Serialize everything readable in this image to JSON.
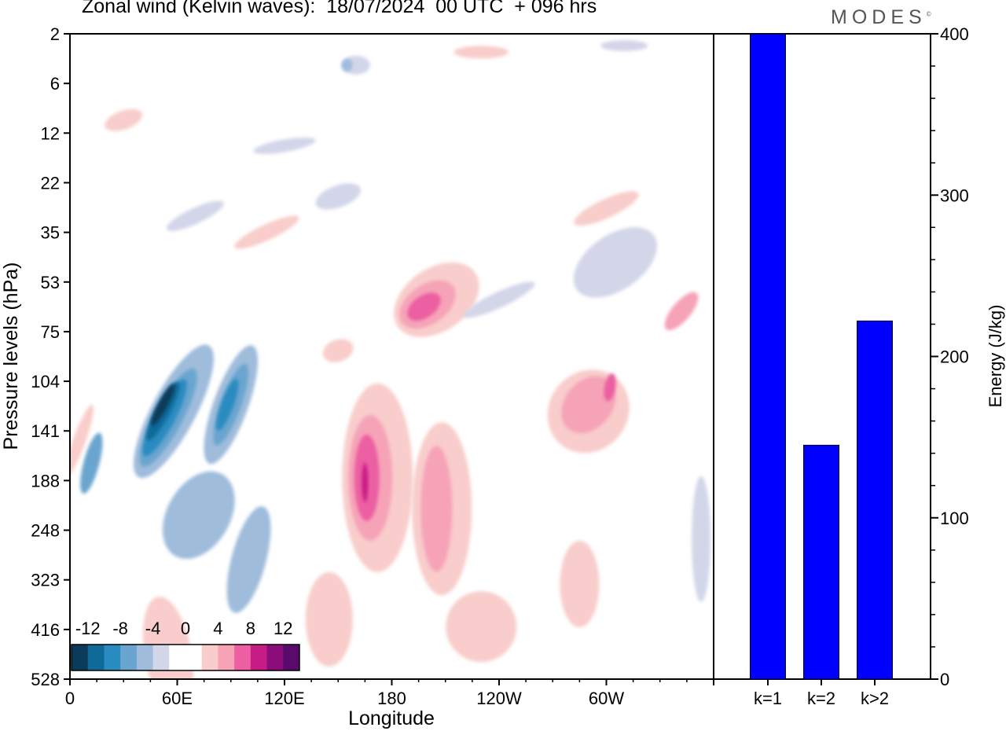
{
  "title": "Zonal wind (Kelvin waves):  18/07/2024  00 UTC  + 096 hrs",
  "brand": "MODES",
  "brand_mark": "©",
  "chart_data": [
    {
      "type": "heatmap",
      "title": "Zonal wind (Kelvin waves):  18/07/2024  00 UTC  + 096 hrs",
      "xlabel": "Longitude",
      "ylabel": "Pressure levels (hPa)",
      "x_ticks": [
        "0",
        "60E",
        "120E",
        "180",
        "120W",
        "60W"
      ],
      "y_ticks": [
        "2",
        "6",
        "12",
        "22",
        "35",
        "53",
        "75",
        "104",
        "141",
        "188",
        "248",
        "323",
        "416",
        "528"
      ],
      "colorbar": {
        "labels": [
          "-12",
          "-8",
          "-4",
          "0",
          "4",
          "8",
          "12"
        ],
        "colors": [
          "#0b3a5a",
          "#0f6a99",
          "#2a8bc0",
          "#6aa5cf",
          "#9fbcdb",
          "#d3d6e9",
          "#ffffff",
          "#ffffff",
          "#f8cdcb",
          "#f6a3b8",
          "#ec5fa2",
          "#c71b86",
          "#8a0d7a",
          "#5a0a6b"
        ]
      },
      "blobs": [
        {
          "lon": 58,
          "p": 125,
          "rx": 28,
          "ry": 95,
          "rot": 28,
          "color": "#9fbcdb"
        },
        {
          "lon": 55,
          "p": 130,
          "rx": 18,
          "ry": 70,
          "rot": 28,
          "color": "#6aa5cf"
        },
        {
          "lon": 53,
          "p": 130,
          "rx": 13,
          "ry": 55,
          "rot": 28,
          "color": "#2a8bc0"
        },
        {
          "lon": 52,
          "p": 125,
          "rx": 9,
          "ry": 42,
          "rot": 28,
          "color": "#0f6a99"
        },
        {
          "lon": 52,
          "p": 120,
          "rx": 6,
          "ry": 30,
          "rot": 28,
          "color": "#0b3a5a"
        },
        {
          "lon": 90,
          "p": 120,
          "rx": 22,
          "ry": 80,
          "rot": 20,
          "color": "#9fbcdb"
        },
        {
          "lon": 90,
          "p": 120,
          "rx": 13,
          "ry": 55,
          "rot": 20,
          "color": "#6aa5cf"
        },
        {
          "lon": 88,
          "p": 120,
          "rx": 8,
          "ry": 35,
          "rot": 20,
          "color": "#2a8bc0"
        },
        {
          "lon": 12,
          "p": 170,
          "rx": 10,
          "ry": 40,
          "rot": 15,
          "color": "#6aa5cf"
        },
        {
          "lon": 72,
          "p": 228,
          "rx": 40,
          "ry": 60,
          "rot": 30,
          "color": "#9fbcdb"
        },
        {
          "lon": 100,
          "p": 290,
          "rx": 22,
          "ry": 70,
          "rot": 15,
          "color": "#9fbcdb"
        },
        {
          "lon": 172,
          "p": 185,
          "rx": 45,
          "ry": 120,
          "rot": 0,
          "color": "#f8cdcb"
        },
        {
          "lon": 168,
          "p": 185,
          "rx": 28,
          "ry": 80,
          "rot": 0,
          "color": "#f6a3b8"
        },
        {
          "lon": 166,
          "p": 185,
          "rx": 16,
          "ry": 55,
          "rot": 0,
          "color": "#ec5fa2"
        },
        {
          "lon": 165,
          "p": 190,
          "rx": 4,
          "ry": 25,
          "rot": 0,
          "color": "#c71b86"
        },
        {
          "lon": 208,
          "p": 220,
          "rx": 38,
          "ry": 110,
          "rot": 0,
          "color": "#f8cdcb"
        },
        {
          "lon": 205,
          "p": 220,
          "rx": 20,
          "ry": 80,
          "rot": 0,
          "color": "#f6a3b8"
        },
        {
          "lon": 205,
          "p": 60,
          "rx": 40,
          "ry": 60,
          "rot": 55,
          "color": "#f8cdcb"
        },
        {
          "lon": 200,
          "p": 62,
          "rx": 25,
          "ry": 40,
          "rot": 55,
          "color": "#f6a3b8"
        },
        {
          "lon": 198,
          "p": 63,
          "rx": 14,
          "ry": 24,
          "rot": 55,
          "color": "#ec5fa2"
        },
        {
          "lon": 290,
          "p": 125,
          "rx": 50,
          "ry": 55,
          "rot": 40,
          "color": "#f8cdcb"
        },
        {
          "lon": 290,
          "p": 120,
          "rx": 30,
          "ry": 40,
          "rot": 40,
          "color": "#f6a3b8"
        },
        {
          "lon": 302,
          "p": 108,
          "rx": 7,
          "ry": 18,
          "rot": 10,
          "color": "#ec5fa2"
        },
        {
          "lon": 305,
          "p": 45,
          "rx": 18,
          "ry": 40,
          "rot": 55,
          "color": "#9fbcdb"
        },
        {
          "lon": 305,
          "p": 45,
          "rx": 35,
          "ry": 60,
          "rot": 55,
          "color": "#d3d6e9"
        },
        {
          "lon": 55,
          "p": 470,
          "rx": 30,
          "ry": 75,
          "rot": -10,
          "color": "#f8cdcb"
        },
        {
          "lon": 145,
          "p": 395,
          "rx": 30,
          "ry": 60,
          "rot": 0,
          "color": "#f8cdcb"
        },
        {
          "lon": 230,
          "p": 410,
          "rx": 45,
          "ry": 45,
          "rot": 0,
          "color": "#f8cdcb"
        },
        {
          "lon": 285,
          "p": 330,
          "rx": 25,
          "ry": 55,
          "rot": 0,
          "color": "#f8cdcb"
        },
        {
          "lon": 353,
          "p": 260,
          "rx": 12,
          "ry": 80,
          "rot": 0,
          "color": "#d3d6e9"
        },
        {
          "lon": 5,
          "p": 150,
          "rx": 8,
          "ry": 50,
          "rot": 20,
          "color": "#f8cdcb"
        },
        {
          "lon": 150,
          "p": 25,
          "rx": 30,
          "ry": 14,
          "rot": -20,
          "color": "#d3d6e9"
        },
        {
          "lon": 70,
          "p": 30,
          "rx": 40,
          "ry": 10,
          "rot": -25,
          "color": "#d3d6e9"
        },
        {
          "lon": 110,
          "p": 35,
          "rx": 45,
          "ry": 10,
          "rot": -25,
          "color": "#f8cdcb"
        },
        {
          "lon": 240,
          "p": 60,
          "rx": 50,
          "ry": 10,
          "rot": -25,
          "color": "#d3d6e9"
        },
        {
          "lon": 300,
          "p": 28,
          "rx": 45,
          "ry": 12,
          "rot": -25,
          "color": "#f8cdcb"
        },
        {
          "lon": 160,
          "p": 4,
          "rx": 18,
          "ry": 12,
          "rot": 0,
          "color": "#d3d6e9"
        },
        {
          "lon": 155,
          "p": 4,
          "rx": 7,
          "ry": 8,
          "rot": 0,
          "color": "#9fbcdb"
        },
        {
          "lon": 30,
          "p": 10,
          "rx": 25,
          "ry": 12,
          "rot": -20,
          "color": "#f8cdcb"
        },
        {
          "lon": 120,
          "p": 14,
          "rx": 40,
          "ry": 8,
          "rot": -10,
          "color": "#d3d6e9"
        },
        {
          "lon": 230,
          "p": 3,
          "rx": 35,
          "ry": 8,
          "rot": 0,
          "color": "#f8cdcb"
        },
        {
          "lon": 310,
          "p": 2.6,
          "rx": 30,
          "ry": 7,
          "rot": 0,
          "color": "#d3d6e9"
        },
        {
          "lon": 150,
          "p": 85,
          "rx": 20,
          "ry": 14,
          "rot": -20,
          "color": "#f8cdcb"
        },
        {
          "lon": 342,
          "p": 65,
          "rx": 12,
          "ry": 30,
          "rot": 40,
          "color": "#f6a3b8"
        }
      ]
    },
    {
      "type": "bar",
      "categories": [
        "k=1",
        "k=2",
        "k>2"
      ],
      "values": [
        400,
        145,
        222
      ],
      "ylabel": "Energy (J/kg)",
      "ylim": [
        0,
        400
      ],
      "y_ticks": [
        0,
        100,
        200,
        300,
        400
      ],
      "bar_color": "#0000ff"
    }
  ]
}
